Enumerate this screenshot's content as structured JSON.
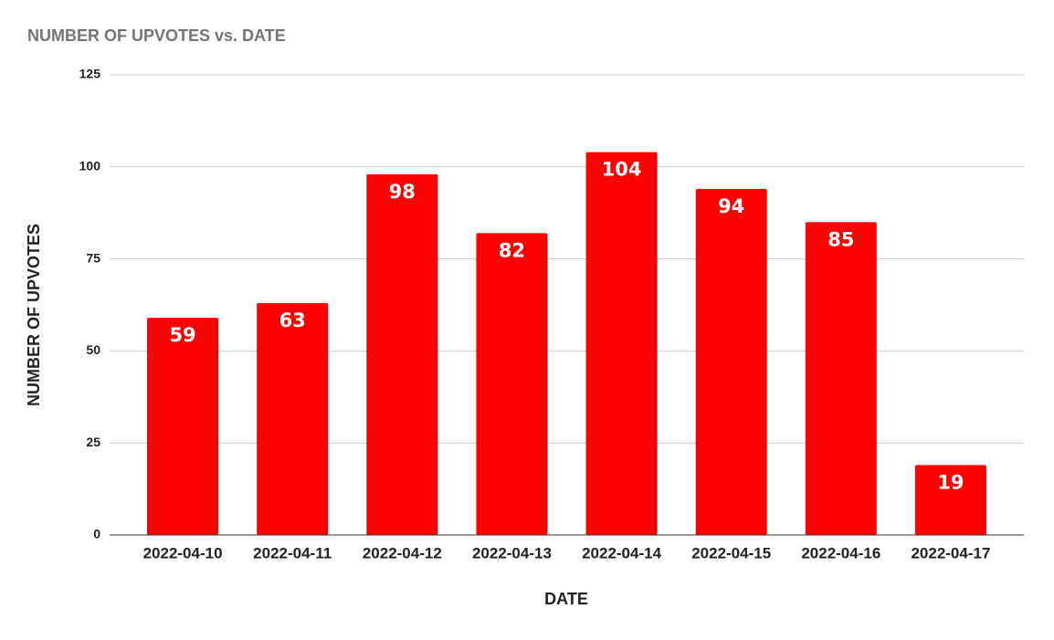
{
  "chart_data": {
    "type": "bar",
    "title": "NUMBER OF UPVOTES vs. DATE",
    "x_label": "DATE",
    "y_label": "NUMBER OF UPVOTES",
    "categories": [
      "2022-04-10",
      "2022-04-11",
      "2022-04-12",
      "2022-04-13",
      "2022-04-14",
      "2022-04-15",
      "2022-04-16",
      "2022-04-17"
    ],
    "values": [
      59,
      63,
      98,
      82,
      104,
      94,
      85,
      19
    ],
    "color": "#ff0000",
    "ylim": [
      0,
      125
    ],
    "yticks": [
      0,
      25,
      50,
      75,
      100,
      125
    ],
    "grid": true
  }
}
